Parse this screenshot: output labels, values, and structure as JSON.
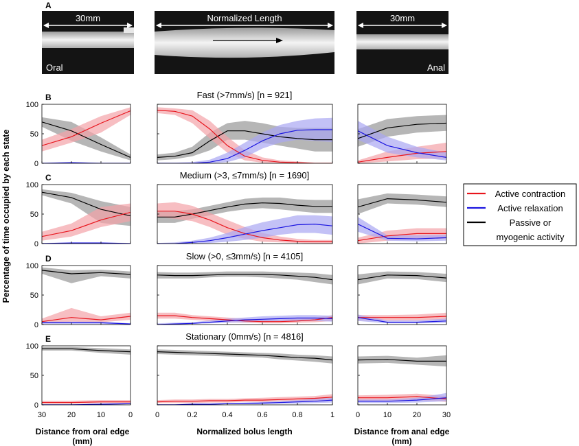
{
  "figure": {
    "ylabel": "Percentage of time occupied by each state",
    "xlabels": [
      "Distance from oral edge\n(mm)",
      "Normalized bolus length",
      "Distance from anal edge\n(mm)"
    ],
    "ticks": {
      "oral": [
        "30",
        "20",
        "10",
        "0"
      ],
      "norm": [
        "0",
        "0.2",
        "0.4",
        "0.6",
        "0.8",
        "1"
      ],
      "anal": [
        "0",
        "10",
        "20",
        "30"
      ],
      "y": [
        "0",
        "50",
        "100"
      ]
    }
  },
  "panel_a": {
    "letter": "A",
    "left_scale": "30mm",
    "center_scale": "Normalized Length",
    "right_scale": "30mm",
    "oral_label": "Oral",
    "anal_label": "Anal"
  },
  "legend": {
    "items": [
      {
        "label": "Active contraction",
        "color": "#e8141c"
      },
      {
        "label": "Active relaxation",
        "color": "#1a14e0"
      },
      {
        "label": "Passive or\nmyogenic activity",
        "color": "#000000"
      }
    ]
  },
  "colors": {
    "contraction": "#e8141c",
    "contraction_band": "#f4a3a8",
    "relaxation": "#1a14e0",
    "relaxation_band": "#aaa6f2",
    "passive": "#000000",
    "passive_band": "#9e9e9e"
  },
  "chart_data": [
    {
      "type": "line",
      "letter": "B",
      "title": "Fast (>7mm/s) [n = 921]",
      "ylim": [
        0,
        100
      ],
      "oral": {
        "x": [
          30,
          20,
          10,
          0
        ],
        "contraction": {
          "mean": [
            30,
            45,
            68,
            89
          ],
          "lo": [
            20,
            35,
            52,
            82
          ],
          "hi": [
            40,
            58,
            80,
            95
          ]
        },
        "relaxation": {
          "mean": [
            0,
            1,
            0,
            0
          ],
          "lo": [
            0,
            0,
            0,
            0
          ],
          "hi": [
            1,
            2,
            1,
            1
          ]
        },
        "passive": {
          "mean": [
            70,
            55,
            32,
            10
          ],
          "lo": [
            62,
            38,
            20,
            5
          ],
          "hi": [
            78,
            70,
            44,
            15
          ]
        }
      },
      "norm": {
        "x": [
          0,
          0.1,
          0.2,
          0.3,
          0.4,
          0.5,
          0.6,
          0.7,
          0.8,
          0.9,
          1.0
        ],
        "contraction": {
          "mean": [
            90,
            88,
            80,
            58,
            30,
            12,
            5,
            2,
            1,
            0,
            0
          ],
          "lo": [
            85,
            82,
            68,
            42,
            18,
            5,
            1,
            0,
            0,
            0,
            0
          ],
          "hi": [
            95,
            93,
            90,
            72,
            45,
            22,
            10,
            5,
            3,
            1,
            1
          ]
        },
        "relaxation": {
          "mean": [
            0,
            0,
            0,
            2,
            8,
            22,
            38,
            50,
            56,
            57,
            57
          ],
          "lo": [
            0,
            0,
            0,
            0,
            2,
            10,
            25,
            35,
            40,
            38,
            36
          ],
          "hi": [
            1,
            1,
            2,
            6,
            18,
            35,
            52,
            65,
            72,
            76,
            77
          ]
        },
        "relaxation_note": "",
        "passive": {
          "mean": [
            10,
            12,
            18,
            38,
            55,
            55,
            50,
            45,
            42,
            40,
            40
          ],
          "lo": [
            5,
            7,
            12,
            22,
            40,
            40,
            35,
            30,
            25,
            20,
            20
          ],
          "hi": [
            15,
            18,
            28,
            52,
            68,
            72,
            68,
            62,
            60,
            60,
            60
          ]
        }
      },
      "anal": {
        "x": [
          0,
          10,
          20,
          30
        ],
        "contraction": {
          "mean": [
            2,
            10,
            17,
            20
          ],
          "lo": [
            0,
            3,
            7,
            8
          ],
          "hi": [
            5,
            20,
            28,
            35
          ]
        },
        "relaxation": {
          "mean": [
            55,
            30,
            18,
            10
          ],
          "lo": [
            40,
            18,
            10,
            5
          ],
          "hi": [
            72,
            45,
            28,
            18
          ]
        },
        "passive": {
          "mean": [
            42,
            60,
            66,
            68
          ],
          "lo": [
            28,
            45,
            52,
            55
          ],
          "hi": [
            58,
            75,
            80,
            82
          ]
        }
      }
    },
    {
      "type": "line",
      "letter": "C",
      "title": "Medium (>3, ≤7mm/s) [n = 1690]",
      "ylim": [
        0,
        100
      ],
      "oral": {
        "x": [
          30,
          20,
          10,
          0
        ],
        "contraction": {
          "mean": [
            12,
            22,
            40,
            53
          ],
          "lo": [
            5,
            12,
            28,
            38
          ],
          "hi": [
            20,
            34,
            62,
            68
          ]
        },
        "relaxation": {
          "mean": [
            0,
            1,
            1,
            0
          ],
          "lo": [
            0,
            0,
            0,
            0
          ],
          "hi": [
            1,
            2,
            2,
            1
          ]
        },
        "passive": {
          "mean": [
            87,
            78,
            58,
            47
          ],
          "lo": [
            82,
            68,
            35,
            30
          ],
          "hi": [
            92,
            86,
            72,
            62
          ]
        }
      },
      "norm": {
        "x": [
          0,
          0.1,
          0.2,
          0.3,
          0.4,
          0.5,
          0.6,
          0.7,
          0.8,
          0.9,
          1.0
        ],
        "contraction": {
          "mean": [
            55,
            55,
            50,
            40,
            27,
            17,
            10,
            6,
            4,
            3,
            3
          ],
          "lo": [
            45,
            42,
            38,
            28,
            15,
            8,
            3,
            2,
            1,
            0,
            0
          ],
          "hi": [
            68,
            70,
            64,
            52,
            40,
            28,
            18,
            12,
            8,
            6,
            6
          ]
        },
        "relaxation": {
          "mean": [
            0,
            0,
            2,
            5,
            10,
            16,
            22,
            27,
            32,
            33,
            30
          ],
          "lo": [
            0,
            0,
            0,
            1,
            3,
            6,
            10,
            15,
            18,
            18,
            15
          ],
          "hi": [
            1,
            2,
            5,
            10,
            18,
            28,
            36,
            42,
            48,
            48,
            46
          ]
        },
        "passive": {
          "mean": [
            45,
            45,
            50,
            56,
            62,
            67,
            69,
            68,
            65,
            63,
            63
          ],
          "lo": [
            35,
            35,
            42,
            48,
            54,
            58,
            60,
            58,
            55,
            52,
            52
          ],
          "hi": [
            55,
            55,
            58,
            64,
            70,
            76,
            78,
            78,
            75,
            74,
            74
          ]
        }
      },
      "anal": {
        "x": [
          0,
          10,
          20,
          30
        ],
        "contraction": {
          "mean": [
            5,
            13,
            17,
            17
          ],
          "lo": [
            0,
            5,
            8,
            8
          ],
          "hi": [
            10,
            22,
            26,
            26
          ]
        },
        "relaxation": {
          "mean": [
            33,
            9,
            8,
            10
          ],
          "lo": [
            20,
            5,
            4,
            5
          ],
          "hi": [
            45,
            14,
            14,
            15
          ]
        },
        "passive": {
          "mean": [
            62,
            76,
            74,
            70
          ],
          "lo": [
            50,
            68,
            66,
            62
          ],
          "hi": [
            75,
            85,
            83,
            80
          ]
        }
      }
    },
    {
      "type": "line",
      "letter": "D",
      "title": "Slow (>0, ≤3mm/s) [n = 4105]",
      "ylim": [
        0,
        100
      ],
      "oral": {
        "x": [
          30,
          20,
          10,
          0
        ],
        "contraction": {
          "mean": [
            5,
            12,
            8,
            14
          ],
          "lo": [
            2,
            5,
            4,
            8
          ],
          "hi": [
            10,
            28,
            14,
            20
          ]
        },
        "relaxation": {
          "mean": [
            3,
            3,
            3,
            1
          ],
          "lo": [
            1,
            1,
            1,
            0
          ],
          "hi": [
            5,
            5,
            5,
            2
          ]
        },
        "passive": {
          "mean": [
            92,
            86,
            88,
            85
          ],
          "lo": [
            86,
            70,
            82,
            78
          ],
          "hi": [
            97,
            92,
            93,
            90
          ]
        }
      },
      "norm": {
        "x": [
          0,
          0.1,
          0.2,
          0.3,
          0.4,
          0.5,
          0.6,
          0.7,
          0.8,
          0.9,
          1.0
        ],
        "contraction": {
          "mean": [
            15,
            15,
            12,
            10,
            8,
            6,
            5,
            5,
            6,
            8,
            12
          ],
          "lo": [
            10,
            10,
            8,
            6,
            4,
            3,
            2,
            2,
            3,
            4,
            6
          ],
          "hi": [
            20,
            20,
            16,
            14,
            12,
            10,
            8,
            8,
            10,
            12,
            16
          ]
        },
        "relaxation": {
          "mean": [
            0,
            1,
            2,
            4,
            6,
            8,
            9,
            10,
            11,
            11,
            10
          ],
          "lo": [
            0,
            0,
            1,
            2,
            3,
            4,
            5,
            6,
            6,
            6,
            5
          ],
          "hi": [
            2,
            3,
            4,
            7,
            10,
            12,
            14,
            15,
            16,
            16,
            15
          ]
        },
        "passive": {
          "mean": [
            84,
            83,
            83,
            84,
            85,
            85,
            85,
            84,
            82,
            80,
            76
          ],
          "lo": [
            78,
            78,
            78,
            80,
            81,
            81,
            80,
            78,
            76,
            72,
            68
          ],
          "hi": [
            89,
            88,
            88,
            89,
            90,
            90,
            90,
            89,
            88,
            87,
            84
          ]
        }
      },
      "anal": {
        "x": [
          0,
          10,
          20,
          30
        ],
        "contraction": {
          "mean": [
            12,
            12,
            12,
            14
          ],
          "lo": [
            7,
            7,
            7,
            8
          ],
          "hi": [
            16,
            16,
            17,
            20
          ]
        },
        "relaxation": {
          "mean": [
            12,
            4,
            4,
            6
          ],
          "lo": [
            6,
            2,
            2,
            3
          ],
          "hi": [
            17,
            7,
            7,
            10
          ]
        },
        "passive": {
          "mean": [
            76,
            84,
            83,
            79
          ],
          "lo": [
            68,
            78,
            77,
            72
          ],
          "hi": [
            85,
            90,
            89,
            86
          ]
        }
      }
    },
    {
      "type": "line",
      "letter": "E",
      "title": "Stationary (0mm/s) [n = 4816]",
      "ylim": [
        0,
        100
      ],
      "oral": {
        "x": [
          30,
          20,
          10,
          0
        ],
        "contraction": {
          "mean": [
            4,
            4,
            5,
            5
          ],
          "lo": [
            2,
            2,
            3,
            3
          ],
          "hi": [
            7,
            7,
            8,
            8
          ]
        },
        "relaxation": {
          "mean": [
            0,
            0,
            1,
            2
          ],
          "lo": [
            0,
            0,
            0,
            1
          ],
          "hi": [
            1,
            1,
            2,
            3
          ]
        },
        "passive": {
          "mean": [
            95,
            95,
            92,
            90
          ],
          "lo": [
            92,
            92,
            88,
            85
          ],
          "hi": [
            98,
            98,
            96,
            94
          ]
        }
      },
      "norm": {
        "x": [
          0,
          0.1,
          0.2,
          0.3,
          0.4,
          0.5,
          0.6,
          0.7,
          0.8,
          0.9,
          1.0
        ],
        "contraction": {
          "mean": [
            5,
            6,
            6,
            7,
            7,
            8,
            8,
            9,
            10,
            11,
            13
          ],
          "lo": [
            3,
            3,
            3,
            4,
            4,
            5,
            5,
            6,
            6,
            7,
            8
          ],
          "hi": [
            8,
            9,
            9,
            10,
            10,
            11,
            12,
            13,
            14,
            15,
            18
          ]
        },
        "relaxation": {
          "mean": [
            0,
            0,
            1,
            1,
            2,
            2,
            3,
            4,
            5,
            6,
            8
          ],
          "lo": [
            0,
            0,
            0,
            0,
            1,
            1,
            1,
            2,
            2,
            3,
            4
          ],
          "hi": [
            1,
            1,
            2,
            2,
            3,
            4,
            5,
            6,
            8,
            10,
            12
          ]
        },
        "passive": {
          "mean": [
            90,
            89,
            88,
            87,
            86,
            85,
            84,
            82,
            80,
            79,
            76
          ],
          "lo": [
            86,
            85,
            84,
            83,
            82,
            81,
            80,
            77,
            75,
            73,
            70
          ],
          "hi": [
            94,
            93,
            92,
            91,
            90,
            89,
            88,
            87,
            85,
            84,
            82
          ]
        }
      },
      "anal": {
        "x": [
          0,
          10,
          20,
          30
        ],
        "contraction": {
          "mean": [
            12,
            12,
            14,
            10
          ],
          "lo": [
            7,
            7,
            8,
            5
          ],
          "hi": [
            16,
            17,
            19,
            15
          ]
        },
        "relaxation": {
          "mean": [
            6,
            6,
            8,
            12
          ],
          "lo": [
            3,
            3,
            4,
            6
          ],
          "hi": [
            9,
            9,
            12,
            20
          ]
        },
        "passive": {
          "mean": [
            76,
            77,
            74,
            74
          ],
          "lo": [
            70,
            71,
            68,
            65
          ],
          "hi": [
            82,
            83,
            80,
            84
          ]
        }
      }
    }
  ]
}
